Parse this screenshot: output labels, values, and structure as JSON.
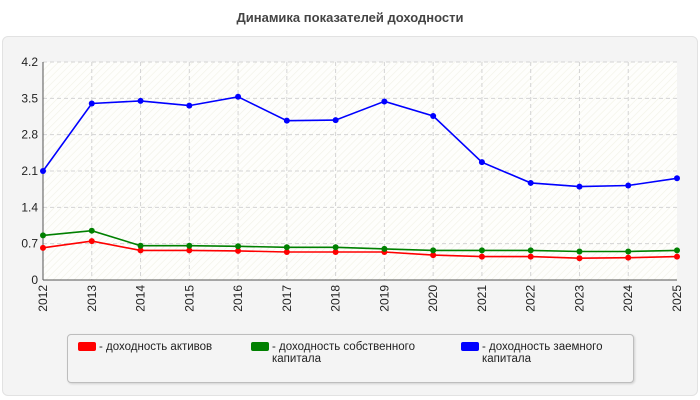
{
  "chart_data": {
    "type": "line",
    "title": "Динамика показателей доходности",
    "xlabel": "",
    "ylabel": "",
    "x": [
      "2012",
      "2013",
      "2014",
      "2015",
      "2016",
      "2017",
      "2018",
      "2019",
      "2020",
      "2021",
      "2022",
      "2023",
      "2024",
      "2025"
    ],
    "ylim": [
      0,
      4.2
    ],
    "yticks": [
      "0",
      "0.7",
      "1.4",
      "2.1",
      "2.8",
      "3.5",
      "4.2"
    ],
    "grid": true,
    "legend_position": "bottom",
    "series": [
      {
        "name": "- доходность активов",
        "name_lines": [
          "- доходность активов"
        ],
        "color": "#ff0000",
        "values": [
          0.62,
          0.75,
          0.57,
          0.57,
          0.56,
          0.54,
          0.54,
          0.54,
          0.48,
          0.45,
          0.45,
          0.42,
          0.43,
          0.45
        ]
      },
      {
        "name": "- доходность собственного капитала",
        "name_lines": [
          "- доходность собственного",
          "капитала"
        ],
        "color": "#008000",
        "values": [
          0.86,
          0.95,
          0.66,
          0.66,
          0.65,
          0.63,
          0.63,
          0.6,
          0.57,
          0.57,
          0.57,
          0.55,
          0.55,
          0.57
        ]
      },
      {
        "name": "- доходность заемного капитала",
        "name_lines": [
          "- доходность заемного",
          "капитала"
        ],
        "color": "#0000ff",
        "values": [
          2.1,
          3.4,
          3.45,
          3.36,
          3.53,
          3.07,
          3.08,
          3.44,
          3.16,
          2.27,
          1.87,
          1.8,
          1.82,
          1.96
        ]
      }
    ]
  }
}
